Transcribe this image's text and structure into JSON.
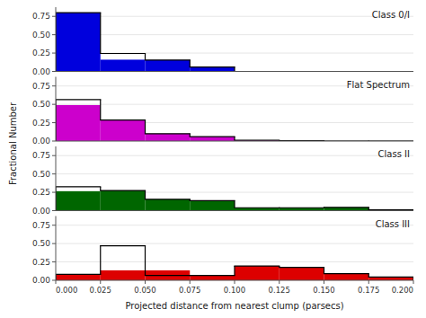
{
  "chart_data": [
    {
      "type": "histogram",
      "bins": [
        0,
        0.025,
        0.05,
        0.075,
        0.1,
        0.125,
        0.15,
        0.175,
        0.2
      ],
      "series": [
        {
          "type": "bar",
          "color": "#0000dd",
          "values": [
            0.8,
            0.16,
            0.155,
            0.06,
            0.0,
            0.0,
            0.0,
            0.0
          ]
        },
        {
          "type": "step",
          "color": "#000000",
          "values": [
            0.8,
            0.245,
            0.155,
            0.06,
            0.0,
            0.0,
            0.0,
            0.0
          ]
        }
      ],
      "annotations": [
        "Class 0/I"
      ],
      "xlim": [
        0,
        0.2
      ],
      "ylim": [
        0,
        0.875
      ],
      "yticks": [
        {
          "value": 0,
          "label": "0.00"
        },
        0.25,
        {
          "value": 0.5,
          "label": "0.50"
        },
        0.75
      ],
      "tick_labels": "y"
    },
    {
      "type": "histogram",
      "bins": [
        0,
        0.025,
        0.05,
        0.075,
        0.1,
        0.125,
        0.15,
        0.175,
        0.2
      ],
      "series": [
        {
          "type": "bar",
          "color": "#cc00cc",
          "values": [
            0.49,
            0.285,
            0.1,
            0.06,
            0.01,
            0.005,
            0.0,
            0.0
          ]
        },
        {
          "type": "step",
          "color": "#000000",
          "values": [
            0.565,
            0.285,
            0.1,
            0.06,
            0.01,
            0.005,
            0.0,
            0.0
          ]
        }
      ],
      "annotations": [
        "Flat Spectrum"
      ],
      "xlim": [
        0,
        0.2
      ],
      "ylim": [
        0,
        0.875
      ],
      "yticks": [
        {
          "value": 0,
          "label": "0.00"
        },
        0.25,
        {
          "value": 0.5,
          "label": "0.50"
        },
        0.75
      ],
      "tick_labels": "y"
    },
    {
      "type": "histogram",
      "bins": [
        0,
        0.025,
        0.05,
        0.075,
        0.1,
        0.125,
        0.15,
        0.175,
        0.2
      ],
      "series": [
        {
          "type": "bar",
          "color": "#006600",
          "values": [
            0.265,
            0.275,
            0.155,
            0.135,
            0.04,
            0.04,
            0.045,
            0.01
          ]
        },
        {
          "type": "step",
          "color": "#000000",
          "values": [
            0.325,
            0.275,
            0.155,
            0.135,
            0.04,
            0.04,
            0.045,
            0.01
          ]
        }
      ],
      "annotations": [
        "Class II"
      ],
      "xlim": [
        0,
        0.2
      ],
      "ylim": [
        0,
        0.875
      ],
      "yticks": [
        {
          "value": 0,
          "label": "0.00"
        },
        0.25,
        {
          "value": 0.5,
          "label": "0.50"
        },
        0.75
      ],
      "tick_labels": "y"
    },
    {
      "type": "histogram",
      "bins": [
        0,
        0.025,
        0.05,
        0.075,
        0.1,
        0.125,
        0.15,
        0.175,
        0.2
      ],
      "series": [
        {
          "type": "bar",
          "color": "#dd0000",
          "values": [
            0.08,
            0.135,
            0.135,
            0.065,
            0.195,
            0.175,
            0.09,
            0.045
          ]
        },
        {
          "type": "step",
          "color": "#000000",
          "values": [
            0.08,
            0.47,
            0.065,
            0.065,
            0.195,
            0.175,
            0.09,
            0.045
          ]
        }
      ],
      "annotations": [
        "Class III"
      ],
      "xlim": [
        0,
        0.2
      ],
      "ylim": [
        0,
        0.875
      ],
      "yticks": [
        {
          "value": 0,
          "label": "0.00"
        },
        0.25,
        {
          "value": 0.5,
          "label": "0.50"
        },
        0.75
      ],
      "xticks": [
        {
          "value": 0,
          "label": "0.000"
        },
        0.025,
        {
          "value": 0.05,
          "label": "0.050"
        },
        0.075,
        {
          "value": 0.1,
          "label": "0.100"
        },
        0.125,
        {
          "value": 0.15,
          "label": "0.150"
        },
        0.175,
        {
          "value": 0.2,
          "label": "0.200"
        }
      ],
      "xlabel": "Projected distance from nearest clump (parsecs)",
      "ylabel": "Fractional Number"
    }
  ]
}
